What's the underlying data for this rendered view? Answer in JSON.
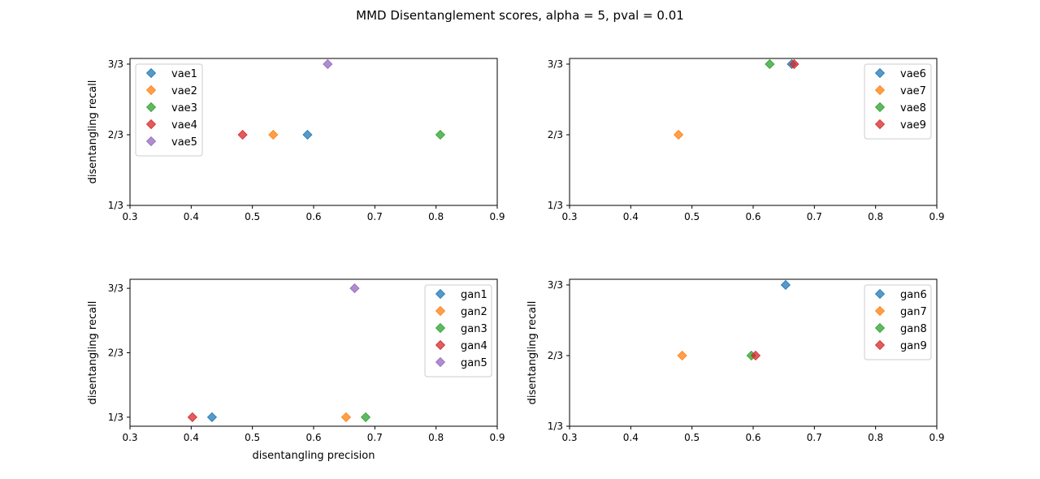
{
  "figure": {
    "title": "MMD Disentanglement scores, alpha = 5, pval = 0.01"
  },
  "palette": {
    "c0": "#1f77b4",
    "c1": "#ff7f0e",
    "c2": "#2ca02c",
    "c3": "#d62728",
    "c4": "#9467bd"
  },
  "chart_data": [
    {
      "type": "scatter",
      "marker": "diamond",
      "xlabel": "",
      "ylabel": "disentangling recall",
      "xlim": [
        0.3,
        0.9
      ],
      "ylim": [
        1,
        3
      ],
      "xticks": [
        "0.3",
        "0.4",
        "0.5",
        "0.6",
        "0.7",
        "0.8",
        "0.9"
      ],
      "yticks": [
        {
          "value": 1,
          "label": "1/3"
        },
        {
          "value": 2,
          "label": "2/3"
        },
        {
          "value": 3,
          "label": "3/3"
        }
      ],
      "legend": "upper-left",
      "series": [
        {
          "name": "vae1",
          "color": "#1f77b4",
          "x": 0.59,
          "y": 2
        },
        {
          "name": "vae2",
          "color": "#ff7f0e",
          "x": 0.534,
          "y": 2
        },
        {
          "name": "vae3",
          "color": "#2ca02c",
          "x": 0.807,
          "y": 2
        },
        {
          "name": "vae4",
          "color": "#d62728",
          "x": 0.484,
          "y": 2
        },
        {
          "name": "vae5",
          "color": "#9467bd",
          "x": 0.623,
          "y": 3
        }
      ]
    },
    {
      "type": "scatter",
      "marker": "diamond",
      "xlabel": "",
      "ylabel": "",
      "xlim": [
        0.3,
        0.9
      ],
      "ylim": [
        1,
        3
      ],
      "xticks": [
        "0.3",
        "0.4",
        "0.5",
        "0.6",
        "0.7",
        "0.8",
        "0.9"
      ],
      "yticks": [
        {
          "value": 1,
          "label": "1/3"
        },
        {
          "value": 2,
          "label": "2/3"
        },
        {
          "value": 3,
          "label": "3/3"
        }
      ],
      "legend": "upper-right",
      "series": [
        {
          "name": "vae6",
          "color": "#1f77b4",
          "x": 0.663,
          "y": 3
        },
        {
          "name": "vae7",
          "color": "#ff7f0e",
          "x": 0.478,
          "y": 2
        },
        {
          "name": "vae8",
          "color": "#2ca02c",
          "x": 0.627,
          "y": 3
        },
        {
          "name": "vae9",
          "color": "#d62728",
          "x": 0.667,
          "y": 3
        }
      ]
    },
    {
      "type": "scatter",
      "marker": "diamond",
      "xlabel": "disentangling precision",
      "ylabel": "disentangling recall",
      "xlim": [
        0.3,
        0.9
      ],
      "ylim": [
        1,
        3
      ],
      "xticks": [
        "0.3",
        "0.4",
        "0.5",
        "0.6",
        "0.7",
        "0.8",
        "0.9"
      ],
      "yticks": [
        {
          "value": 1,
          "label": "1/3"
        },
        {
          "value": 2,
          "label": "2/3"
        },
        {
          "value": 3,
          "label": "3/3"
        }
      ],
      "legend": "upper-right",
      "series": [
        {
          "name": "gan1",
          "color": "#1f77b4",
          "x": 0.434,
          "y": 1
        },
        {
          "name": "gan2",
          "color": "#ff7f0e",
          "x": 0.653,
          "y": 1
        },
        {
          "name": "gan3",
          "color": "#2ca02c",
          "x": 0.685,
          "y": 1
        },
        {
          "name": "gan4",
          "color": "#d62728",
          "x": 0.402,
          "y": 1
        },
        {
          "name": "gan5",
          "color": "#9467bd",
          "x": 0.667,
          "y": 3
        }
      ]
    },
    {
      "type": "scatter",
      "marker": "diamond",
      "xlabel": "",
      "ylabel": "disentangling recall",
      "xlim": [
        0.3,
        0.9
      ],
      "ylim": [
        1,
        3
      ],
      "xticks": [
        "0.3",
        "0.4",
        "0.5",
        "0.6",
        "0.7",
        "0.8",
        "0.9"
      ],
      "yticks": [
        {
          "value": 1,
          "label": "1/3"
        },
        {
          "value": 2,
          "label": "2/3"
        },
        {
          "value": 3,
          "label": "3/3"
        }
      ],
      "legend": "upper-right",
      "series": [
        {
          "name": "gan6",
          "color": "#1f77b4",
          "x": 0.653,
          "y": 3
        },
        {
          "name": "gan7",
          "color": "#ff7f0e",
          "x": 0.484,
          "y": 2
        },
        {
          "name": "gan8",
          "color": "#2ca02c",
          "x": 0.597,
          "y": 2
        },
        {
          "name": "gan9",
          "color": "#d62728",
          "x": 0.604,
          "y": 2
        }
      ]
    }
  ]
}
